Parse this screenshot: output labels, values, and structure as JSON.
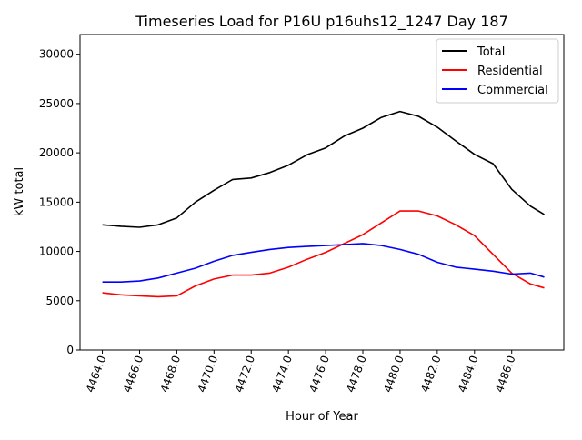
{
  "chart_data": {
    "type": "line",
    "title": "Timeseries Load for P16U p16uhs12_1247  Day 187",
    "xlabel": "Hour of Year",
    "ylabel": "kW total",
    "xlim": [
      4462.8,
      4488.8
    ],
    "ylim": [
      0,
      32000
    ],
    "xticks": [
      4464,
      4466,
      4468,
      4470,
      4472,
      4474,
      4476,
      4478,
      4480,
      4482,
      4484,
      4486
    ],
    "xtick_labels": [
      "4464.0",
      "4466.0",
      "4468.0",
      "4470.0",
      "4472.0",
      "4474.0",
      "4476.0",
      "4478.0",
      "4480.0",
      "4482.0",
      "4484.0",
      "4486.0"
    ],
    "yticks": [
      0,
      5000,
      10000,
      15000,
      20000,
      25000,
      30000
    ],
    "ytick_labels": [
      "0",
      "5000",
      "10000",
      "15000",
      "20000",
      "25000",
      "30000"
    ],
    "grid": false,
    "legend_position": "top-right",
    "x": [
      4464,
      4465,
      4466,
      4467,
      4468,
      4469,
      4470,
      4471,
      4472,
      4473,
      4474,
      4475,
      4476,
      4477,
      4478,
      4479,
      4480,
      4481,
      4482,
      4483,
      4484,
      4485,
      4486,
      4487,
      4487.75
    ],
    "series": [
      {
        "name": "Total",
        "color": "#000000",
        "values": [
          12700,
          12550,
          12450,
          12700,
          13400,
          15000,
          16200,
          17300,
          17450,
          18000,
          18750,
          19800,
          20500,
          21700,
          22500,
          23600,
          24200,
          23700,
          22600,
          21200,
          19850,
          18900,
          16300,
          14600,
          13750
        ]
      },
      {
        "name": "Residential",
        "color": "#ff0000",
        "values": [
          5800,
          5600,
          5500,
          5400,
          5500,
          6500,
          7200,
          7600,
          7600,
          7800,
          8400,
          9200,
          9900,
          10800,
          11700,
          12900,
          14100,
          14100,
          13600,
          12700,
          11600,
          9700,
          7800,
          6700,
          6300
        ]
      },
      {
        "name": "Commercial",
        "color": "#0000ff",
        "values": [
          6900,
          6900,
          7000,
          7300,
          7800,
          8300,
          9000,
          9600,
          9900,
          10200,
          10400,
          10500,
          10600,
          10700,
          10800,
          10600,
          10200,
          9700,
          8900,
          8400,
          8200,
          8000,
          7700,
          7800,
          7400
        ]
      }
    ]
  }
}
